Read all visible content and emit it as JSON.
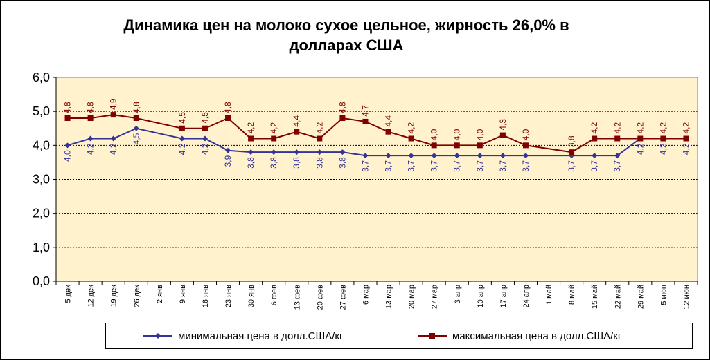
{
  "chart_data": {
    "type": "line",
    "title_line1": "Динамика цен на молоко сухое цельное, жирность 26,0%  в",
    "title_line2": "долларах  США",
    "xlabel": "",
    "ylabel": "",
    "ylim": [
      0,
      6
    ],
    "y_ticks": [
      "0,0",
      "1,0",
      "2,0",
      "3,0",
      "4,0",
      "5,0",
      "6,0"
    ],
    "grid": true,
    "legend_position": "bottom",
    "categories": [
      "5 дек",
      "12 дек",
      "19 дек",
      "26 дек",
      "2 янв",
      "9 янв",
      "16 янв",
      "23 янв",
      "30 янв",
      "6 фев",
      "13 фев",
      "20 фев",
      "27 фев",
      "6 мар",
      "13 мар",
      "20 мар",
      "27 мар",
      "3 апр",
      "10 апр",
      "17 апр",
      "24 апр",
      "1 май",
      "8 май",
      "15 май",
      "22 май",
      "29 май",
      "5 июн",
      "12 июн"
    ],
    "series": [
      {
        "name": "минимальная цена в долл.США/кг",
        "color": "#333399",
        "marker": "diamond",
        "values": [
          4.0,
          4.2,
          4.2,
          4.5,
          null,
          4.2,
          4.2,
          3.85,
          3.8,
          3.8,
          3.8,
          3.8,
          3.8,
          3.7,
          3.7,
          3.7,
          3.7,
          3.7,
          3.7,
          3.7,
          3.7,
          null,
          3.7,
          3.7,
          3.7,
          4.2,
          4.2,
          4.2
        ],
        "labels": [
          "4,0",
          "4,2",
          "4,2",
          "4,5",
          "",
          "4,2",
          "4,2",
          "3,9",
          "3,8",
          "3,8",
          "3,8",
          "3,8",
          "3,8",
          "3,7",
          "3,7",
          "3,7",
          "3,7",
          "3,7",
          "3,7",
          "3,7",
          "3,7",
          "",
          "3,7",
          "3,7",
          "3,7",
          "4,2",
          "4,2",
          "4,2"
        ]
      },
      {
        "name": "максимальная цена в долл.США/кг",
        "color": "#800000",
        "marker": "square",
        "values": [
          4.8,
          4.8,
          4.9,
          4.8,
          null,
          4.5,
          4.5,
          4.8,
          4.2,
          4.2,
          4.4,
          4.2,
          4.8,
          4.7,
          4.4,
          4.2,
          4.0,
          4.0,
          4.0,
          4.3,
          4.0,
          null,
          3.8,
          4.2,
          4.2,
          4.2,
          4.2,
          4.2
        ],
        "labels": [
          "4,8",
          "4,8",
          "4,9",
          "4,8",
          "",
          "4,5",
          "4,5",
          "4,8",
          "4,2",
          "4,2",
          "4,4",
          "4,2",
          "4,8",
          "4,7",
          "4,4",
          "4,2",
          "4,0",
          "4,0",
          "4,0",
          "4,3",
          "4,0",
          "",
          "3,8",
          "4,2",
          "4,2",
          "4,2",
          "4,2",
          "4,2"
        ]
      }
    ],
    "colors": {
      "plot_background": "#FFF2CC",
      "grid": "#000000"
    }
  }
}
